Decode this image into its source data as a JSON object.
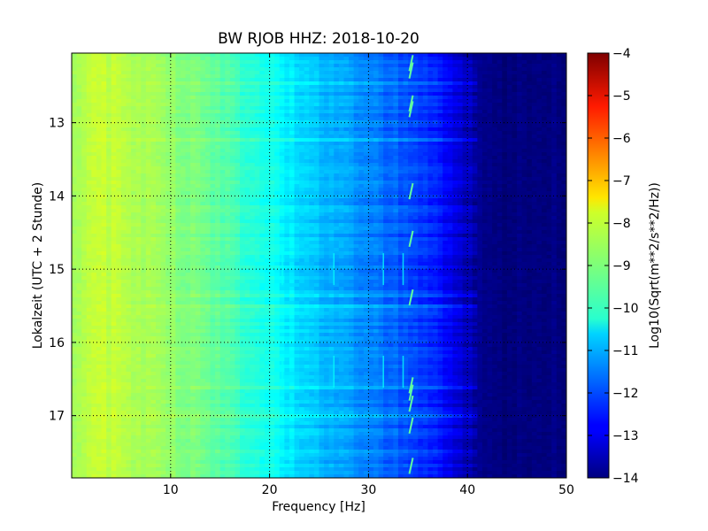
{
  "chart_data": {
    "type": "heatmap",
    "title": "BW RJOB HHZ: 2018-10-20",
    "xlabel": "Frequency [Hz]",
    "ylabel": "Lokalzeit (UTC + 2 Stunde)",
    "xlim": [
      0,
      50
    ],
    "ylim": [
      17.85,
      12.05
    ],
    "y_inverted": true,
    "x_ticks": [
      10,
      20,
      30,
      40,
      50
    ],
    "y_ticks": [
      13,
      14,
      15,
      16,
      17
    ],
    "grid": true,
    "colormap": "jet",
    "colorbar": {
      "label": "Log10(Sqrt(m**2/s**2/Hz))",
      "range": [
        -14,
        -4
      ],
      "ticks": [
        -4,
        -5,
        -6,
        -7,
        -8,
        -9,
        -10,
        -11,
        -12,
        -13,
        -14
      ]
    },
    "spectrum_profile": {
      "frequency_hz": [
        0,
        2,
        5,
        10,
        15,
        20,
        25,
        30,
        35,
        38,
        40,
        42,
        50
      ],
      "level": [
        -8.6,
        -8.3,
        -8.4,
        -8.8,
        -9.4,
        -10.1,
        -10.9,
        -11.5,
        -12.1,
        -12.8,
        -13.4,
        -14.0,
        -14.0
      ]
    },
    "spectral_lines": {
      "frequency_hz": 34.3,
      "time_hours": [
        12.15,
        12.25,
        12.7,
        12.78,
        13.9,
        14.55,
        15.35,
        16.55,
        16.65,
        16.8,
        17.1,
        17.65
      ]
    },
    "cycle_lines_hz": [
      26.5,
      31.5,
      21.3,
      33.5
    ]
  }
}
